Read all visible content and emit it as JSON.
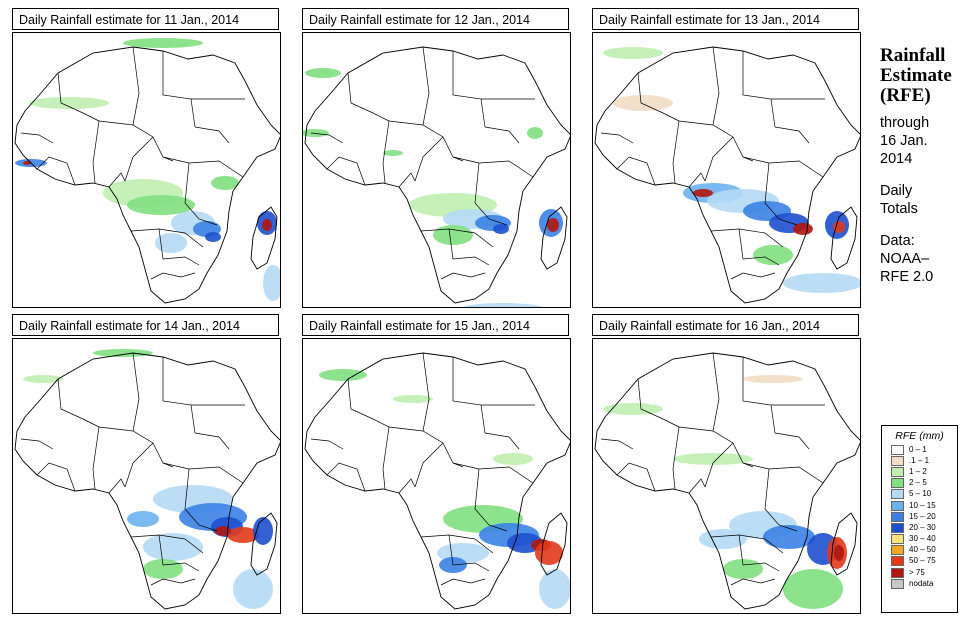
{
  "panels": [
    {
      "title": "Daily Rainfall estimate for  11 Jan., 2014"
    },
    {
      "title": "Daily Rainfall estimate for  12 Jan., 2014"
    },
    {
      "title": "Daily Rainfall estimate for  13 Jan., 2014"
    },
    {
      "title": "Daily Rainfall estimate for  14 Jan., 2014"
    },
    {
      "title": "Daily Rainfall estimate for  15 Jan., 2014"
    },
    {
      "title": "Daily Rainfall estimate for  16 Jan., 2014"
    }
  ],
  "side": {
    "title_line1": "Rainfall",
    "title_line2": "Estimate",
    "title_line3": "(RFE)",
    "through_line1": "through",
    "through_line2": "16 Jan.",
    "through_line3": "2014",
    "daily_line1": "Daily",
    "daily_line2": "Totals",
    "data_line1": "Data:",
    "data_line2": "NOAA–",
    "data_line3": "RFE 2.0"
  },
  "legend": {
    "title": "RFE (mm)",
    "items": [
      {
        "label": "0 – 1",
        "color": "#ffffff"
      },
      {
        "label": ".1 – 1",
        "color": "#f2dcc4"
      },
      {
        "label": "1 – 2",
        "color": "#bfeeb0"
      },
      {
        "label": "2 – 5",
        "color": "#7fe07f"
      },
      {
        "label": "5 – 10",
        "color": "#b4d9f5"
      },
      {
        "label": "10 – 15",
        "color": "#6cb2ee"
      },
      {
        "label": "15 – 20",
        "color": "#3c82e6"
      },
      {
        "label": "20 – 30",
        "color": "#1d50cf"
      },
      {
        "label": "30 – 40",
        "color": "#fbe27a"
      },
      {
        "label": "40 – 50",
        "color": "#f5a623"
      },
      {
        "label": "50 – 75",
        "color": "#e23a1a"
      },
      {
        "label": "> 75",
        "color": "#b0160e"
      },
      {
        "label": "nodata",
        "color": "#c8c8c8"
      }
    ]
  }
}
